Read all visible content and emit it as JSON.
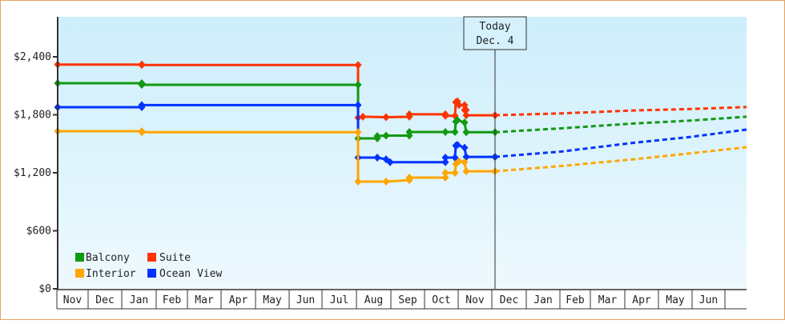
{
  "chart_data": {
    "type": "line",
    "title": "",
    "xlabel": "",
    "ylabel": "",
    "ylim": [
      0,
      2800
    ],
    "y_ticks": [
      {
        "value": 0,
        "label": "$0"
      },
      {
        "value": 600,
        "label": "$600"
      },
      {
        "value": 1200,
        "label": "$1,200"
      },
      {
        "value": 1800,
        "label": "$1,800"
      },
      {
        "value": 2400,
        "label": "$2,400"
      }
    ],
    "x_months": [
      "Nov",
      "Dec",
      "Jan",
      "Feb",
      "Mar",
      "Apr",
      "May",
      "Jun",
      "Jul",
      "Aug",
      "Sep",
      "Oct",
      "Nov",
      "Dec",
      "Jan",
      "Feb",
      "Mar",
      "Apr",
      "May",
      "Jun"
    ],
    "annotation": {
      "line1": "Today",
      "line2": "Dec. 4"
    },
    "legend": [
      {
        "name": "Balcony",
        "color": "#119911"
      },
      {
        "name": "Suite",
        "color": "#ff3300"
      },
      {
        "name": "Interior",
        "color": "#ffa500"
      },
      {
        "name": "Ocean View",
        "color": "#0033ff"
      }
    ],
    "series": [
      {
        "name": "Suite",
        "color": "#ff3300",
        "points": [
          [
            71,
            2320
          ],
          [
            176,
            2320
          ],
          [
            176,
            2315
          ],
          [
            446,
            2315
          ],
          [
            446,
            1770
          ],
          [
            452,
            1780
          ],
          [
            481,
            1775
          ],
          [
            510,
            1780
          ],
          [
            510,
            1805
          ],
          [
            555,
            1805
          ],
          [
            555,
            1790
          ],
          [
            567,
            1790
          ],
          [
            568,
            1930
          ],
          [
            570,
            1940
          ],
          [
            572,
            1900
          ],
          [
            579,
            1900
          ],
          [
            579,
            1850
          ],
          [
            581,
            1850
          ],
          [
            581,
            1795
          ],
          [
            617,
            1795
          ]
        ],
        "forecast": [
          [
            617,
            1795
          ],
          [
            700,
            1815
          ],
          [
            790,
            1845
          ],
          [
            860,
            1860
          ],
          [
            931,
            1880
          ]
        ]
      },
      {
        "name": "Balcony",
        "color": "#119911",
        "points": [
          [
            71,
            2127
          ],
          [
            176,
            2127
          ],
          [
            176,
            2110
          ],
          [
            446,
            2110
          ],
          [
            446,
            1556
          ],
          [
            470,
            1556
          ],
          [
            470,
            1580
          ],
          [
            481,
            1585
          ],
          [
            510,
            1585
          ],
          [
            510,
            1622
          ],
          [
            555,
            1622
          ],
          [
            567,
            1622
          ],
          [
            568,
            1730
          ],
          [
            570,
            1745
          ],
          [
            579,
            1720
          ],
          [
            581,
            1620
          ],
          [
            617,
            1620
          ]
        ],
        "forecast": [
          [
            617,
            1620
          ],
          [
            700,
            1660
          ],
          [
            790,
            1710
          ],
          [
            860,
            1740
          ],
          [
            931,
            1780
          ]
        ]
      },
      {
        "name": "Ocean View",
        "color": "#0033ff",
        "points": [
          [
            71,
            1879
          ],
          [
            176,
            1879
          ],
          [
            176,
            1900
          ],
          [
            446,
            1900
          ],
          [
            446,
            1357
          ],
          [
            470,
            1357
          ],
          [
            481,
            1340
          ],
          [
            486,
            1310
          ],
          [
            555,
            1310
          ],
          [
            555,
            1357
          ],
          [
            567,
            1357
          ],
          [
            568,
            1480
          ],
          [
            570,
            1490
          ],
          [
            579,
            1460
          ],
          [
            581,
            1365
          ],
          [
            617,
            1365
          ]
        ],
        "forecast": [
          [
            617,
            1365
          ],
          [
            700,
            1420
          ],
          [
            790,
            1510
          ],
          [
            860,
            1570
          ],
          [
            931,
            1647
          ]
        ]
      },
      {
        "name": "Interior",
        "color": "#ffa500",
        "points": [
          [
            71,
            1630
          ],
          [
            176,
            1630
          ],
          [
            176,
            1620
          ],
          [
            446,
            1620
          ],
          [
            446,
            1109
          ],
          [
            481,
            1109
          ],
          [
            510,
            1125
          ],
          [
            510,
            1150
          ],
          [
            555,
            1150
          ],
          [
            555,
            1200
          ],
          [
            567,
            1200
          ],
          [
            568,
            1290
          ],
          [
            572,
            1320
          ],
          [
            579,
            1310
          ],
          [
            581,
            1216
          ],
          [
            617,
            1216
          ]
        ],
        "forecast": [
          [
            617,
            1216
          ],
          [
            700,
            1270
          ],
          [
            790,
            1340
          ],
          [
            860,
            1400
          ],
          [
            931,
            1465
          ]
        ]
      }
    ]
  }
}
